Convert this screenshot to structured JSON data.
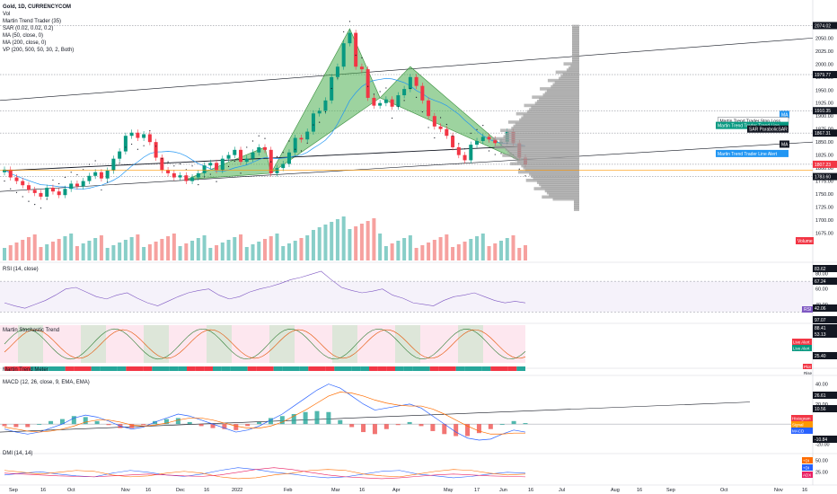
{
  "chart_data": {
    "type": "line",
    "symbol_title": "Gold, 1D, CURRENCYCOM",
    "indicator_legend": [
      "Vol",
      "Martin Trend Trader (35)",
      "SAR (0.02, 0.02, 0.2)",
      "MA (50, close, 0)",
      "MA (200, close, 0)",
      "VP (200, 500, 50, 30, 2, Both)"
    ],
    "x_axis_labels": [
      "Sep",
      "16",
      "Oct",
      "Nov",
      "16",
      "Dec",
      "16",
      "2022",
      "Feb",
      "Mar",
      "16",
      "Apr",
      "May",
      "17",
      "Jun",
      "16",
      "Jul",
      "Aug",
      "16",
      "Sep",
      "Oct",
      "Nov",
      "16"
    ],
    "price_axis": {
      "ylim": [
        1700,
        2080
      ],
      "ticks": [
        "2075.00",
        "2050.00",
        "2025.00",
        "2000.00",
        "1975.00",
        "1950.00",
        "1925.00",
        "1900.00",
        "1875.00",
        "1850.00",
        "1825.00",
        "1800.00",
        "1775.00",
        "1750.00",
        "1725.00",
        "1700.00",
        "1675.00"
      ]
    },
    "price_badges": [
      {
        "text": "2074.02",
        "value": 2074.02,
        "color": "#131722"
      },
      {
        "text": "1979.77",
        "value": 1979.77,
        "color": "#131722"
      },
      {
        "text": "1910.35",
        "value": 1910.35,
        "color": "#131722"
      },
      {
        "text": "MA",
        "value": 1903,
        "color": "#2196f3"
      },
      {
        "text": "Martin Trend Trader Stop Loss",
        "value": 1891,
        "color": "#ffffff"
      },
      {
        "text": "Martin Trend Trader Trend Line",
        "value": 1882,
        "color": "#089981"
      },
      {
        "text": "SAR ParabolicSAR",
        "value": 1875,
        "color": "#131722"
      },
      {
        "text": "1867.31",
        "value": 1867.31,
        "color": "#131722"
      },
      {
        "text": "MA",
        "value": 1846,
        "color": "#131722"
      },
      {
        "text": "Martin Trend Trader Line Alert",
        "value": 1828,
        "color": "#2196f3"
      },
      {
        "text": "1807.23",
        "value": 1807.23,
        "color": "#f23645"
      },
      {
        "text": "1783.60",
        "value": 1783.6,
        "color": "#131722"
      }
    ],
    "closes": [
      1797,
      1782,
      1775,
      1767,
      1758,
      1752,
      1745,
      1762,
      1755,
      1748,
      1760,
      1770,
      1765,
      1775,
      1785,
      1792,
      1780,
      1795,
      1818,
      1832,
      1862,
      1868,
      1858,
      1865,
      1850,
      1820,
      1796,
      1790,
      1782,
      1786,
      1775,
      1782,
      1790,
      1805,
      1810,
      1796,
      1818,
      1825,
      1835,
      1812,
      1818,
      1830,
      1840,
      1835,
      1790,
      1800,
      1808,
      1830,
      1858,
      1855,
      1870,
      1905,
      1910,
      1930,
      1975,
      1995,
      2040,
      2060,
      1995,
      1990,
      1935,
      1920,
      1925,
      1932,
      1918,
      1940,
      1952,
      1975,
      1958,
      1930,
      1900,
      1880,
      1875,
      1862,
      1840,
      1825,
      1815,
      1845,
      1852,
      1860,
      1855,
      1848,
      1850,
      1870,
      1848,
      1820,
      1807
    ],
    "volume_section": {
      "label": "Volume"
    },
    "rsi": {
      "title": "RSI (14, close)",
      "ticks": [
        "80.00",
        "60.00",
        "40.00"
      ],
      "badges": [
        "83.62",
        "67.24",
        "42.06"
      ],
      "values": [
        42,
        38,
        35,
        40,
        45,
        52,
        60,
        62,
        56,
        50,
        47,
        52,
        55,
        48,
        42,
        38,
        44,
        50,
        55,
        58,
        60,
        52,
        47,
        50,
        56,
        60,
        63,
        67,
        72,
        75,
        79,
        83,
        72,
        62,
        58,
        55,
        57,
        60,
        52,
        48,
        42,
        40,
        38,
        45,
        50,
        52,
        55,
        50,
        45,
        42,
        44,
        42
      ],
      "label": "RSI"
    },
    "stochastic": {
      "title": "Martin Stochastic Trend",
      "badges": [
        "97.07",
        "88.41",
        "53.13",
        "25.40"
      ],
      "ticks": [
        "80.00",
        "40.00",
        "20.00"
      ],
      "live_alert_labels": [
        "Live Alert",
        "Live Alert"
      ]
    },
    "trend_meter": {
      "title": "Martin Trend Meter",
      "labels": [
        "Plot",
        "Rise"
      ]
    },
    "macd": {
      "title": "MACD (12, 26, close, 9, EMA, EMA)",
      "ticks": [
        "40.00",
        "20.00",
        "-20.00"
      ],
      "badges": [
        "26.61",
        "10.56",
        "-10.84"
      ],
      "labels": [
        "Histogram",
        "Signal",
        "MACD"
      ],
      "macd_values": [
        -5,
        -8,
        -10,
        -8,
        -4,
        0,
        6,
        9,
        7,
        3,
        -2,
        -5,
        -3,
        2,
        6,
        10,
        8,
        4,
        0,
        -4,
        -8,
        -6,
        -2,
        4,
        10,
        18,
        26,
        34,
        40,
        36,
        28,
        20,
        14,
        16,
        18,
        20,
        16,
        8,
        0,
        -8,
        -14,
        -16,
        -15,
        -10,
        -6,
        -8
      ],
      "signal_values": [
        -3,
        -5,
        -7,
        -8,
        -7,
        -5,
        -2,
        2,
        4,
        4,
        2,
        -1,
        -2,
        -1,
        1,
        4,
        6,
        6,
        4,
        1,
        -2,
        -4,
        -4,
        -2,
        2,
        8,
        14,
        21,
        28,
        32,
        31,
        28,
        24,
        21,
        19,
        18,
        18,
        15,
        10,
        4,
        -2,
        -7,
        -10,
        -10,
        -9,
        -9
      ]
    },
    "dmi": {
      "title": "DMI (14, 14)",
      "ticks": [
        "50.00",
        "25.00"
      ],
      "badges": [
        "+DI",
        "+DI",
        "ADX"
      ],
      "plus_di": [
        18,
        22,
        25,
        20,
        16,
        14,
        22,
        28,
        24,
        18,
        15,
        20,
        28,
        34,
        30,
        24,
        20,
        15,
        12,
        14,
        20,
        26,
        28,
        20,
        16,
        12,
        15,
        20,
        24,
        22
      ],
      "minus_di": [
        28,
        24,
        20,
        24,
        28,
        26,
        18,
        14,
        16,
        22,
        26,
        22,
        14,
        10,
        12,
        18,
        22,
        28,
        30,
        28,
        20,
        16,
        14,
        20,
        26,
        30,
        28,
        22,
        18,
        20
      ],
      "adx": [
        22,
        20,
        18,
        16,
        15,
        14,
        16,
        18,
        20,
        18,
        16,
        15,
        18,
        24,
        30,
        34,
        30,
        24,
        18,
        14,
        12,
        10,
        12,
        15,
        18,
        20,
        18,
        16,
        15,
        14
      ]
    }
  }
}
